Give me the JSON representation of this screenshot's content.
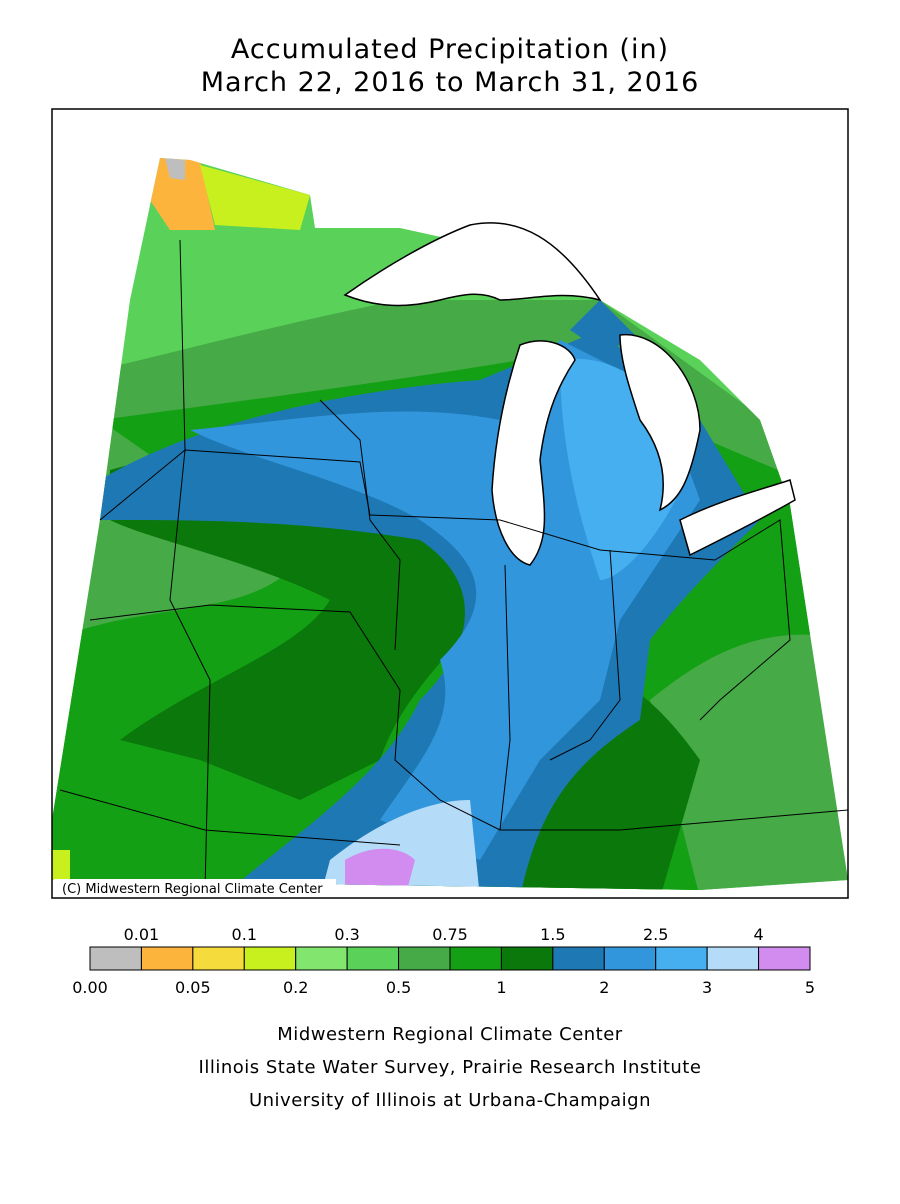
{
  "title": [
    "Accumulated Precipitation (in)",
    "March 22, 2016 to March 31, 2016"
  ],
  "map": {
    "credit": "(C) Midwestern Regional Climate Center"
  },
  "legend": {
    "colors": [
      "#bebebe",
      "#fdb43c",
      "#f5dc3c",
      "#c8f01e",
      "#82e66e",
      "#5ad25a",
      "#46aa46",
      "#14a014",
      "#0a780a",
      "#1e78b4",
      "#3296dc",
      "#46aff0",
      "#b4dcf8",
      "#d28cf0"
    ],
    "labels": [
      "0.00",
      "0.01",
      "0.05",
      "0.1",
      "0.2",
      "0.3",
      "0.5",
      "0.75",
      "1",
      "1.5",
      "2",
      "2.5",
      "3",
      "4",
      "5"
    ]
  },
  "footer": [
    "Midwestern Regional Climate Center",
    "Illinois State Water Survey, Prairie Research Institute",
    "University of Illinois at Urbana-Champaign"
  ]
}
